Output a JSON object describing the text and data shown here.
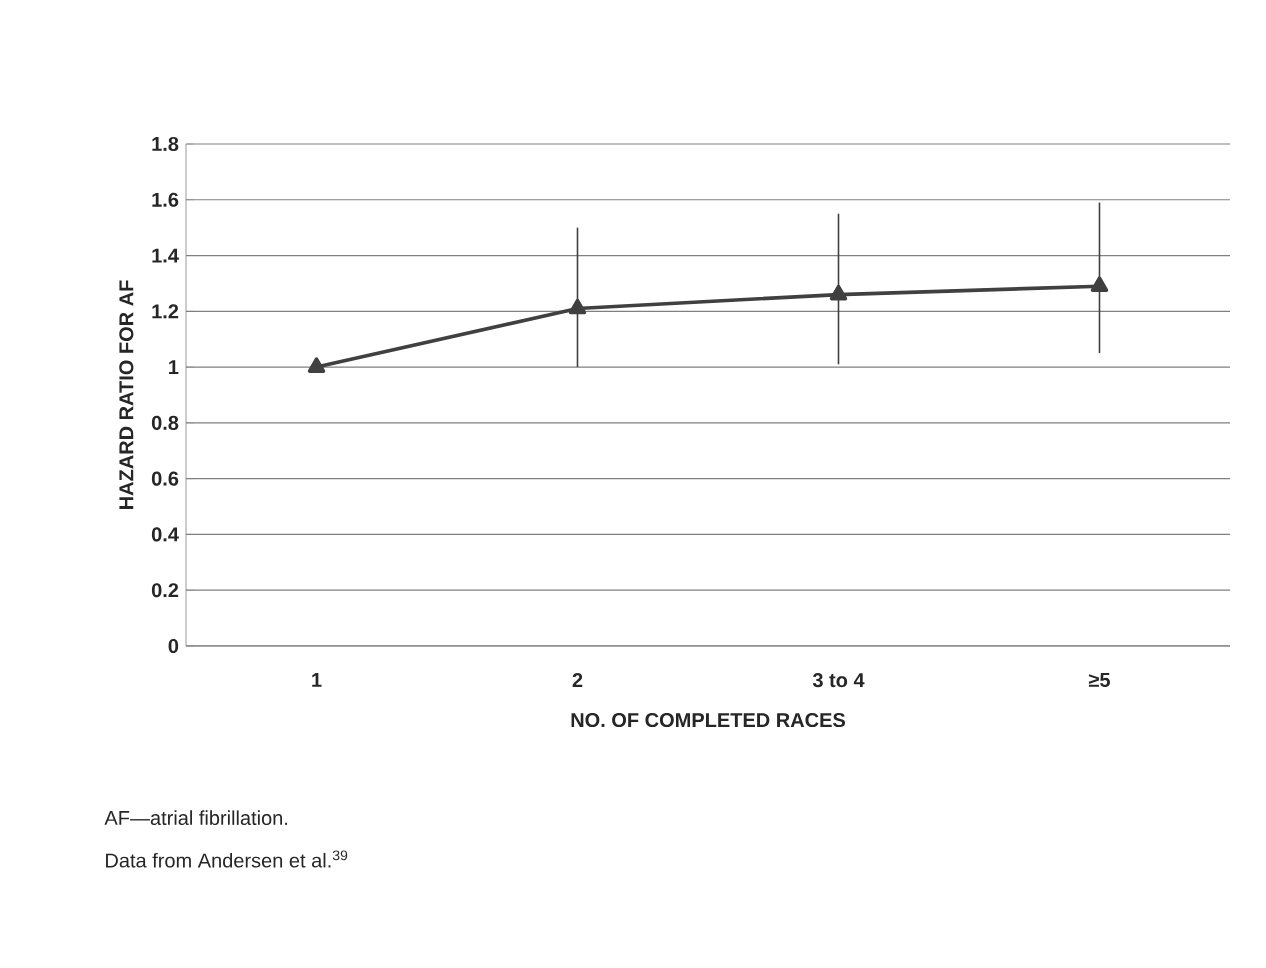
{
  "chart_data": {
    "type": "line",
    "xlabel": "NO. OF COMPLETED RACES",
    "ylabel": "HAZARD RATIO FOR AF",
    "categories": [
      "1",
      "2",
      "3 to 4",
      "≥5"
    ],
    "series": [
      {
        "color": "#404040",
        "values": [
          1,
          1.21,
          1.26,
          1.29
        ],
        "errors": [
          null,
          [
            1.0,
            1.5
          ],
          [
            1.01,
            1.55
          ],
          [
            1.05,
            1.59
          ]
        ]
      }
    ],
    "ylim": [
      0,
      1.8
    ],
    "yticks": [
      0,
      0.2,
      0.4,
      0.6,
      0.8,
      1,
      1.2,
      1.4,
      1.6,
      1.8
    ],
    "grid": "y",
    "marker": "triangle",
    "line_style": "solid",
    "annotations": [
      "AF—atrial fibrillation.",
      "Data from Andersen et al.$^{39}$"
    ]
  }
}
